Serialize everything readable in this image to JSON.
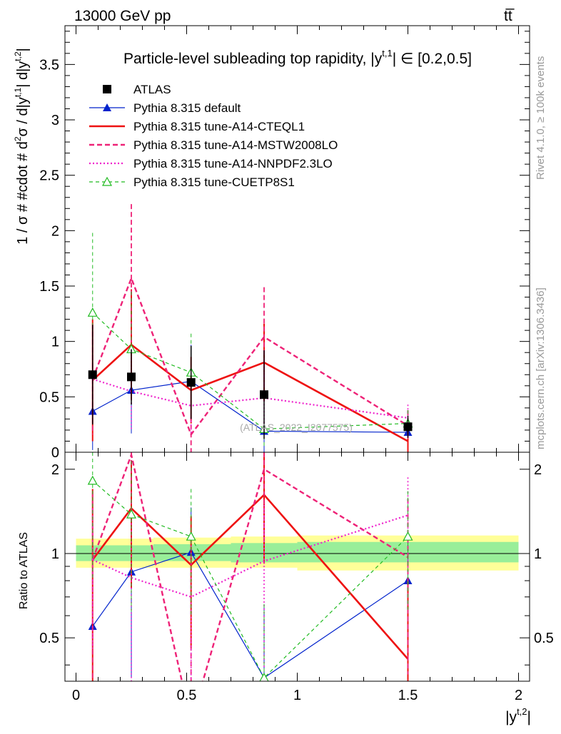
{
  "header": {
    "energy_label": "13000 GeV pp",
    "process_label": "tt̅"
  },
  "side_labels": {
    "rivet": "Rivet 4.1.0, ≥ 100k events",
    "mcplots": "mcplots.cern.ch [arXiv:1306.3436]"
  },
  "chart_data": [
    {
      "panel": "main",
      "type": "line",
      "title": "Particle-level subleading top rapidity, |y^{t,1}| ∈ [0.2,0.5]",
      "title_main": "Particle-level subleading top rapidity, |y",
      "title_sup": "t,1",
      "title_tail": "| ∈ [0.2,0.5]",
      "ylabel": "1 / σ # #cdot # d²σ / d|y^{t,1}| d|y^{t,2}|",
      "ylabel_parts": {
        "a": "1 / σ # #cdot # d",
        "b": "2",
        "c": "σ / d|y",
        "d": "t,1",
        "e": "| d|y",
        "f": "t,2",
        "g": "|"
      },
      "xlim": [
        -0.05,
        2.05
      ],
      "ylim": [
        0,
        3.85
      ],
      "yticks": [
        0,
        0.5,
        1,
        1.5,
        2,
        2.5,
        3,
        3.5
      ],
      "ytick_labels": [
        "0",
        "0.5",
        "1",
        "1.5",
        "2",
        "2.5",
        "3",
        "3.5"
      ],
      "watermark": "(ATLAS_2022_I2077575)",
      "x": [
        0.075,
        0.25,
        0.52,
        0.85,
        1.5
      ],
      "series": [
        {
          "name": "ATLAS",
          "style": "data",
          "color": "#000000",
          "marker": "square",
          "values": [
            0.7,
            0.68,
            0.63,
            0.52,
            0.23
          ],
          "err": [
            0.45,
            0.25,
            0.33,
            0.4,
            0.1
          ]
        },
        {
          "name": "Pythia 8.315 default",
          "style": "solid-thin",
          "color": "#0022cc",
          "marker": "triangle",
          "values": [
            0.37,
            0.56,
            0.64,
            0.19,
            0.18
          ],
          "err": [
            0.35,
            0.39,
            0.33,
            0.19,
            0.05
          ]
        },
        {
          "name": "Pythia 8.315 tune-A14-CTEQL1",
          "style": "solid-thick",
          "color": "#ee1111",
          "marker": "none",
          "values": [
            0.65,
            0.97,
            0.56,
            0.81,
            0.1
          ],
          "err": [
            0.55,
            0.5,
            0.3,
            0.35,
            0.1
          ]
        },
        {
          "name": "Pythia 8.315 tune-A14-MSTW2008LO",
          "style": "dashed",
          "color": "#ee2277",
          "marker": "none",
          "values": [
            0.66,
            1.57,
            0.16,
            1.04,
            0.24
          ],
          "err": [
            0.5,
            0.67,
            0.16,
            0.45,
            0.14
          ]
        },
        {
          "name": "Pythia 8.315 tune-A14-NNPDF2.3LO",
          "style": "dotted",
          "color": "#ee22cc",
          "marker": "none",
          "values": [
            0.66,
            0.55,
            0.42,
            0.49,
            0.31
          ],
          "err": [
            0.35,
            0.35,
            0.25,
            0.3,
            0.12
          ]
        },
        {
          "name": "Pythia 8.315 tune-CUETP8S1",
          "style": "dashed-thin",
          "color": "#22bb22",
          "marker": "open-triangle",
          "values": [
            1.26,
            0.93,
            0.72,
            0.21,
            0.26
          ],
          "err": [
            0.72,
            0.52,
            0.35,
            0.17,
            0.12
          ]
        }
      ]
    },
    {
      "panel": "ratio",
      "type": "line",
      "ylabel": "Ratio to ATLAS",
      "xlabel": "|y^{t,2}|",
      "xlabel_main": "|y",
      "xlabel_sup": "t,2",
      "xlabel_tail": "|",
      "xlim": [
        -0.05,
        2.05
      ],
      "ylim": [
        0.35,
        2.3
      ],
      "xticks": [
        0,
        0.5,
        1,
        1.5,
        2
      ],
      "xtick_labels": [
        "0",
        "0.5",
        "1",
        "1.5",
        "2"
      ],
      "yticks": [
        0.5,
        1,
        2
      ],
      "ytick_labels": [
        "0.5",
        "1",
        "2"
      ],
      "x": [
        0.075,
        0.25,
        0.52,
        0.85,
        1.5
      ],
      "bins": [
        [
          0,
          0.15
        ],
        [
          0.15,
          0.35
        ],
        [
          0.35,
          0.7
        ],
        [
          0.7,
          1.0
        ],
        [
          1.0,
          2.0
        ]
      ],
      "band_total": [
        [
          0.89,
          1.13
        ],
        [
          0.89,
          1.13
        ],
        [
          0.89,
          1.14
        ],
        [
          0.89,
          1.15
        ],
        [
          0.87,
          1.16
        ]
      ],
      "band_stat": [
        [
          0.94,
          1.07
        ],
        [
          0.94,
          1.07
        ],
        [
          0.94,
          1.08
        ],
        [
          0.93,
          1.09
        ],
        [
          0.93,
          1.1
        ]
      ],
      "series": [
        {
          "name": "Pythia 8.315 default",
          "style": "solid-thin",
          "color": "#0022cc",
          "marker": "triangle",
          "values": [
            0.55,
            0.86,
            1.01,
            0.36,
            0.8
          ],
          "err": [
            0.5,
            0.5,
            0.45,
            0.3,
            0.2
          ]
        },
        {
          "name": "Pythia 8.315 tune-A14-CTEQL1",
          "style": "solid-thick",
          "color": "#ee1111",
          "marker": "none",
          "values": [
            0.95,
            1.45,
            0.91,
            1.62,
            0.42
          ],
          "err": [
            0.75,
            0.7,
            0.45,
            0.7,
            0.4
          ]
        },
        {
          "name": "Pythia 8.315 tune-A14-MSTW2008LO",
          "style": "dashed",
          "color": "#ee2277",
          "marker": "none",
          "values": [
            0.95,
            2.25,
            0.25,
            2.0,
            0.97
          ],
          "err": [
            0.7,
            0.9,
            0.25,
            0.9,
            0.6
          ]
        },
        {
          "name": "Pythia 8.315 tune-A14-NNPDF2.3LO",
          "style": "dotted",
          "color": "#ee22cc",
          "marker": "none",
          "values": [
            0.95,
            0.82,
            0.7,
            0.94,
            1.37
          ],
          "err": [
            0.5,
            0.5,
            0.4,
            0.55,
            0.5
          ]
        },
        {
          "name": "Pythia 8.315 tune-CUETP8S1",
          "style": "dashed-thin",
          "color": "#22bb22",
          "marker": "open-triangle",
          "values": [
            1.82,
            1.38,
            1.15,
            0.36,
            1.15
          ],
          "err": [
            1.0,
            0.76,
            0.55,
            0.3,
            0.52
          ]
        }
      ]
    }
  ]
}
